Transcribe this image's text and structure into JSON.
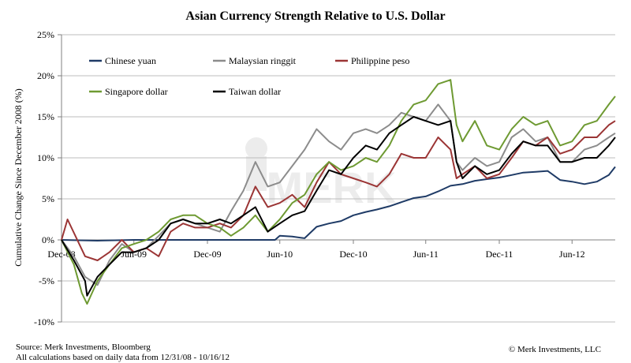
{
  "chart_data": {
    "type": "line",
    "title": "Asian Currency Strength Relative to U.S. Dollar",
    "ylabel": "Cumulative Change Since December 2008 (%)",
    "xlabel": "",
    "ylim": [
      -10,
      25
    ],
    "y_ticks": [
      -10,
      -5,
      0,
      5,
      10,
      15,
      20,
      25
    ],
    "y_tick_format": "percent",
    "x_range": [
      "2008-12-31",
      "2012-10-16"
    ],
    "x_ticks": [
      {
        "date": "2008-12-31",
        "label": "Dec-08"
      },
      {
        "date": "2009-06-30",
        "label": "Jun-09"
      },
      {
        "date": "2009-12-31",
        "label": "Dec-09"
      },
      {
        "date": "2010-06-30",
        "label": "Jun-10"
      },
      {
        "date": "2010-12-31",
        "label": "Dec-10"
      },
      {
        "date": "2011-06-30",
        "label": "Jun-11"
      },
      {
        "date": "2011-12-31",
        "label": "Dec-11"
      },
      {
        "date": "2012-06-30",
        "label": "Jun-12"
      }
    ],
    "grid": "horizontal",
    "legend_position": "top-left",
    "series": [
      {
        "name": "Chinese yuan",
        "color": "#1f3b66",
        "points": [
          [
            "2008-12-31",
            0.0
          ],
          [
            "2009-03-31",
            -0.1
          ],
          [
            "2009-06-30",
            0.0
          ],
          [
            "2009-09-30",
            0.0
          ],
          [
            "2009-12-31",
            0.0
          ],
          [
            "2010-03-31",
            0.0
          ],
          [
            "2010-06-18",
            0.0
          ],
          [
            "2010-06-30",
            0.5
          ],
          [
            "2010-07-31",
            0.4
          ],
          [
            "2010-08-31",
            0.2
          ],
          [
            "2010-09-30",
            1.6
          ],
          [
            "2010-10-31",
            2.0
          ],
          [
            "2010-11-30",
            2.3
          ],
          [
            "2010-12-31",
            3.0
          ],
          [
            "2011-01-31",
            3.4
          ],
          [
            "2011-02-28",
            3.7
          ],
          [
            "2011-03-31",
            4.1
          ],
          [
            "2011-04-30",
            4.6
          ],
          [
            "2011-05-31",
            5.1
          ],
          [
            "2011-06-30",
            5.3
          ],
          [
            "2011-07-31",
            5.9
          ],
          [
            "2011-08-31",
            6.6
          ],
          [
            "2011-09-30",
            6.8
          ],
          [
            "2011-10-31",
            7.2
          ],
          [
            "2011-11-30",
            7.4
          ],
          [
            "2011-12-31",
            7.6
          ],
          [
            "2012-01-31",
            7.9
          ],
          [
            "2012-02-29",
            8.2
          ],
          [
            "2012-03-31",
            8.3
          ],
          [
            "2012-04-30",
            8.4
          ],
          [
            "2012-05-31",
            7.3
          ],
          [
            "2012-06-30",
            7.1
          ],
          [
            "2012-07-31",
            6.8
          ],
          [
            "2012-08-31",
            7.1
          ],
          [
            "2012-09-30",
            7.9
          ],
          [
            "2012-10-16",
            8.9
          ]
        ]
      },
      {
        "name": "Malaysian ringgit",
        "color": "#8c8c8c",
        "points": [
          [
            "2008-12-31",
            0.0
          ],
          [
            "2009-01-31",
            -2.0
          ],
          [
            "2009-02-28",
            -4.5
          ],
          [
            "2009-03-31",
            -5.5
          ],
          [
            "2009-04-30",
            -2.5
          ],
          [
            "2009-05-31",
            -0.5
          ],
          [
            "2009-06-30",
            -1.5
          ],
          [
            "2009-07-31",
            -1.0
          ],
          [
            "2009-08-31",
            0.5
          ],
          [
            "2009-09-30",
            2.0
          ],
          [
            "2009-10-31",
            2.5
          ],
          [
            "2009-11-30",
            2.0
          ],
          [
            "2009-12-31",
            1.5
          ],
          [
            "2010-01-31",
            1.0
          ],
          [
            "2010-02-28",
            3.5
          ],
          [
            "2010-03-31",
            6.0
          ],
          [
            "2010-04-30",
            9.5
          ],
          [
            "2010-05-31",
            6.5
          ],
          [
            "2010-06-30",
            7.0
          ],
          [
            "2010-07-31",
            9.0
          ],
          [
            "2010-08-31",
            11.0
          ],
          [
            "2010-09-30",
            13.5
          ],
          [
            "2010-10-31",
            12.0
          ],
          [
            "2010-11-30",
            11.0
          ],
          [
            "2010-12-31",
            13.0
          ],
          [
            "2011-01-31",
            13.5
          ],
          [
            "2011-02-28",
            13.0
          ],
          [
            "2011-03-31",
            14.0
          ],
          [
            "2011-04-30",
            15.5
          ],
          [
            "2011-05-31",
            15.0
          ],
          [
            "2011-06-30",
            14.5
          ],
          [
            "2011-07-31",
            16.5
          ],
          [
            "2011-08-31",
            14.5
          ],
          [
            "2011-09-15",
            9.5
          ],
          [
            "2011-09-30",
            8.5
          ],
          [
            "2011-10-31",
            10.0
          ],
          [
            "2011-11-30",
            9.0
          ],
          [
            "2011-12-31",
            9.5
          ],
          [
            "2012-01-31",
            12.5
          ],
          [
            "2012-02-29",
            13.5
          ],
          [
            "2012-03-31",
            12.0
          ],
          [
            "2012-04-30",
            12.5
          ],
          [
            "2012-05-31",
            9.5
          ],
          [
            "2012-06-30",
            9.5
          ],
          [
            "2012-07-31",
            11.0
          ],
          [
            "2012-08-31",
            11.5
          ],
          [
            "2012-09-30",
            12.5
          ],
          [
            "2012-10-16",
            13.0
          ]
        ]
      },
      {
        "name": "Philippine peso",
        "color": "#9b3535",
        "points": [
          [
            "2008-12-31",
            0.0
          ],
          [
            "2009-01-15",
            2.5
          ],
          [
            "2009-02-28",
            -2.0
          ],
          [
            "2009-03-31",
            -2.5
          ],
          [
            "2009-04-30",
            -1.5
          ],
          [
            "2009-05-31",
            0.0
          ],
          [
            "2009-06-30",
            -1.5
          ],
          [
            "2009-07-31",
            -1.0
          ],
          [
            "2009-08-31",
            -2.0
          ],
          [
            "2009-09-30",
            1.0
          ],
          [
            "2009-10-31",
            2.0
          ],
          [
            "2009-11-30",
            1.5
          ],
          [
            "2009-12-31",
            1.5
          ],
          [
            "2010-01-31",
            2.0
          ],
          [
            "2010-02-28",
            1.5
          ],
          [
            "2010-03-31",
            3.0
          ],
          [
            "2010-04-30",
            6.5
          ],
          [
            "2010-05-31",
            4.0
          ],
          [
            "2010-06-30",
            4.5
          ],
          [
            "2010-07-31",
            5.5
          ],
          [
            "2010-08-31",
            4.0
          ],
          [
            "2010-09-30",
            7.0
          ],
          [
            "2010-10-31",
            9.5
          ],
          [
            "2010-11-30",
            8.0
          ],
          [
            "2010-12-31",
            7.5
          ],
          [
            "2011-01-31",
            7.0
          ],
          [
            "2011-02-28",
            6.5
          ],
          [
            "2011-03-31",
            8.0
          ],
          [
            "2011-04-30",
            10.5
          ],
          [
            "2011-05-31",
            10.0
          ],
          [
            "2011-06-30",
            10.0
          ],
          [
            "2011-07-31",
            12.5
          ],
          [
            "2011-08-31",
            11.0
          ],
          [
            "2011-09-15",
            7.5
          ],
          [
            "2011-09-30",
            8.0
          ],
          [
            "2011-10-31",
            9.0
          ],
          [
            "2011-11-30",
            7.5
          ],
          [
            "2011-12-31",
            8.0
          ],
          [
            "2012-01-31",
            10.0
          ],
          [
            "2012-02-29",
            12.0
          ],
          [
            "2012-03-31",
            11.5
          ],
          [
            "2012-04-30",
            12.5
          ],
          [
            "2012-05-31",
            10.5
          ],
          [
            "2012-06-30",
            11.0
          ],
          [
            "2012-07-31",
            12.5
          ],
          [
            "2012-08-31",
            12.5
          ],
          [
            "2012-09-30",
            14.0
          ],
          [
            "2012-10-16",
            14.5
          ]
        ]
      },
      {
        "name": "Singapore dollar",
        "color": "#6e9a32",
        "points": [
          [
            "2008-12-31",
            0.0
          ],
          [
            "2009-01-31",
            -3.0
          ],
          [
            "2009-02-20",
            -6.5
          ],
          [
            "2009-03-05",
            -7.8
          ],
          [
            "2009-03-31",
            -5.0
          ],
          [
            "2009-04-30",
            -3.0
          ],
          [
            "2009-05-31",
            -1.0
          ],
          [
            "2009-06-30",
            -0.5
          ],
          [
            "2009-07-31",
            0.0
          ],
          [
            "2009-08-31",
            1.0
          ],
          [
            "2009-09-30",
            2.5
          ],
          [
            "2009-10-31",
            3.0
          ],
          [
            "2009-11-30",
            3.0
          ],
          [
            "2009-12-31",
            2.0
          ],
          [
            "2010-01-31",
            1.5
          ],
          [
            "2010-02-28",
            0.5
          ],
          [
            "2010-03-31",
            1.5
          ],
          [
            "2010-04-30",
            3.0
          ],
          [
            "2010-05-31",
            1.0
          ],
          [
            "2010-06-30",
            2.5
          ],
          [
            "2010-07-31",
            4.5
          ],
          [
            "2010-08-31",
            5.5
          ],
          [
            "2010-09-30",
            8.0
          ],
          [
            "2010-10-31",
            9.5
          ],
          [
            "2010-11-30",
            8.5
          ],
          [
            "2010-12-31",
            9.0
          ],
          [
            "2011-01-31",
            10.0
          ],
          [
            "2011-02-28",
            9.5
          ],
          [
            "2011-03-31",
            11.5
          ],
          [
            "2011-04-30",
            14.5
          ],
          [
            "2011-05-31",
            16.5
          ],
          [
            "2011-06-30",
            17.0
          ],
          [
            "2011-07-31",
            19.0
          ],
          [
            "2011-08-31",
            19.5
          ],
          [
            "2011-09-15",
            14.0
          ],
          [
            "2011-09-30",
            12.0
          ],
          [
            "2011-10-31",
            14.5
          ],
          [
            "2011-11-30",
            11.5
          ],
          [
            "2011-12-31",
            11.0
          ],
          [
            "2012-01-31",
            13.5
          ],
          [
            "2012-02-29",
            15.0
          ],
          [
            "2012-03-31",
            14.0
          ],
          [
            "2012-04-30",
            14.5
          ],
          [
            "2012-05-31",
            11.5
          ],
          [
            "2012-06-30",
            12.0
          ],
          [
            "2012-07-31",
            14.0
          ],
          [
            "2012-08-31",
            14.5
          ],
          [
            "2012-09-30",
            16.5
          ],
          [
            "2012-10-16",
            17.5
          ]
        ]
      },
      {
        "name": "Taiwan dollar",
        "color": "#000000",
        "points": [
          [
            "2008-12-31",
            0.0
          ],
          [
            "2009-01-31",
            -2.5
          ],
          [
            "2009-02-28",
            -5.0
          ],
          [
            "2009-03-05",
            -6.8
          ],
          [
            "2009-03-31",
            -4.5
          ],
          [
            "2009-04-30",
            -3.0
          ],
          [
            "2009-05-31",
            -1.5
          ],
          [
            "2009-06-30",
            -1.5
          ],
          [
            "2009-07-31",
            -1.0
          ],
          [
            "2009-08-31",
            0.0
          ],
          [
            "2009-09-30",
            2.0
          ],
          [
            "2009-10-31",
            2.5
          ],
          [
            "2009-11-30",
            2.0
          ],
          [
            "2009-12-31",
            2.0
          ],
          [
            "2010-01-31",
            2.5
          ],
          [
            "2010-02-28",
            2.0
          ],
          [
            "2010-03-31",
            3.0
          ],
          [
            "2010-04-30",
            4.0
          ],
          [
            "2010-05-31",
            1.0
          ],
          [
            "2010-06-30",
            2.0
          ],
          [
            "2010-07-31",
            3.0
          ],
          [
            "2010-08-31",
            3.5
          ],
          [
            "2010-09-30",
            6.0
          ],
          [
            "2010-10-31",
            8.5
          ],
          [
            "2010-11-30",
            8.0
          ],
          [
            "2010-12-31",
            10.0
          ],
          [
            "2011-01-31",
            11.5
          ],
          [
            "2011-02-28",
            11.0
          ],
          [
            "2011-03-31",
            13.0
          ],
          [
            "2011-04-30",
            14.0
          ],
          [
            "2011-05-31",
            15.0
          ],
          [
            "2011-06-30",
            14.5
          ],
          [
            "2011-07-31",
            14.0
          ],
          [
            "2011-08-31",
            14.5
          ],
          [
            "2011-09-15",
            9.5
          ],
          [
            "2011-09-30",
            7.5
          ],
          [
            "2011-10-31",
            9.0
          ],
          [
            "2011-11-30",
            8.0
          ],
          [
            "2011-12-31",
            8.5
          ],
          [
            "2012-01-31",
            10.5
          ],
          [
            "2012-02-29",
            12.0
          ],
          [
            "2012-03-31",
            11.5
          ],
          [
            "2012-04-30",
            11.5
          ],
          [
            "2012-05-31",
            9.5
          ],
          [
            "2012-06-30",
            9.5
          ],
          [
            "2012-07-31",
            10.0
          ],
          [
            "2012-08-31",
            10.0
          ],
          [
            "2012-09-30",
            11.5
          ],
          [
            "2012-10-16",
            12.5
          ]
        ]
      }
    ]
  },
  "footer": {
    "source": "Source: Merk Investments, Bloomberg",
    "calc_note": "All calculations based on daily data from 12/31/08 - 10/16/12",
    "copyright": "© Merk Investments, LLC"
  },
  "watermark_text": "MERK"
}
